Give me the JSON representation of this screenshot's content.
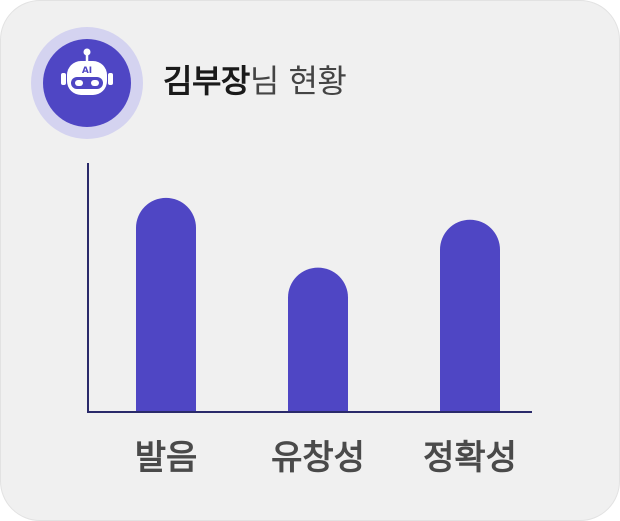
{
  "header": {
    "name": "김부장",
    "suffix": "님 현황",
    "avatar_badge": "AI"
  },
  "colors": {
    "bar": "#4f46c4",
    "axis": "#2a2a6a",
    "card_bg": "#f0f0f0",
    "avatar_ring": "#d4d3f0"
  },
  "chart_data": {
    "type": "bar",
    "categories": [
      "발음",
      "유창성",
      "정확성"
    ],
    "values": [
      215,
      145,
      193
    ],
    "ylim": [
      0,
      250
    ],
    "title": "",
    "xlabel": "",
    "ylabel": "",
    "grid": false,
    "legend": "none"
  }
}
